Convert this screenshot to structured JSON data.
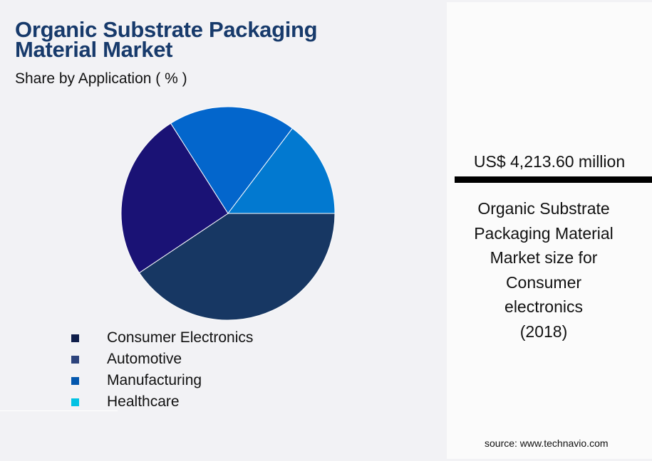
{
  "header": {
    "title_line1": "Organic Substrate Packaging",
    "title_line2": "Material Market",
    "subtitle": "Share by Application ( % )"
  },
  "chart_data": {
    "type": "pie",
    "title": "Organic Substrate Packaging Material Market",
    "subtitle": "Share by Application ( % )",
    "categories": [
      "Consumer Electronics",
      "Automotive",
      "Manufacturing",
      "Healthcare"
    ],
    "values": [
      40.6,
      25.4,
      19.3,
      14.7
    ],
    "colors": [
      "#173763",
      "#1a1275",
      "#0366cc",
      "#0279d0"
    ],
    "legend_colors": [
      "#0f1e4a",
      "#2c437c",
      "#0357ae",
      "#02c2e3"
    ],
    "start_angle_deg": 0,
    "direction": "clockwise",
    "legend_position": "bottom"
  },
  "legend": {
    "items": [
      {
        "label": "Consumer Electronics",
        "color": "#0f1e4a"
      },
      {
        "label": "Automotive",
        "color": "#2c437c"
      },
      {
        "label": "Manufacturing",
        "color": "#0357ae"
      },
      {
        "label": "Healthcare",
        "color": "#02c2e3"
      }
    ]
  },
  "highlight": {
    "value": "US$ 4,213.60 million",
    "caption_lines": [
      "Organic Substrate",
      "Packaging Material",
      "Market size for",
      "Consumer",
      "electronics",
      "(2018)"
    ]
  },
  "footer": {
    "source": "source: www.technavio.com"
  },
  "colors": {
    "title": "#173a6b",
    "background": "#f2f2f5",
    "panel": "#fbfbfb"
  }
}
